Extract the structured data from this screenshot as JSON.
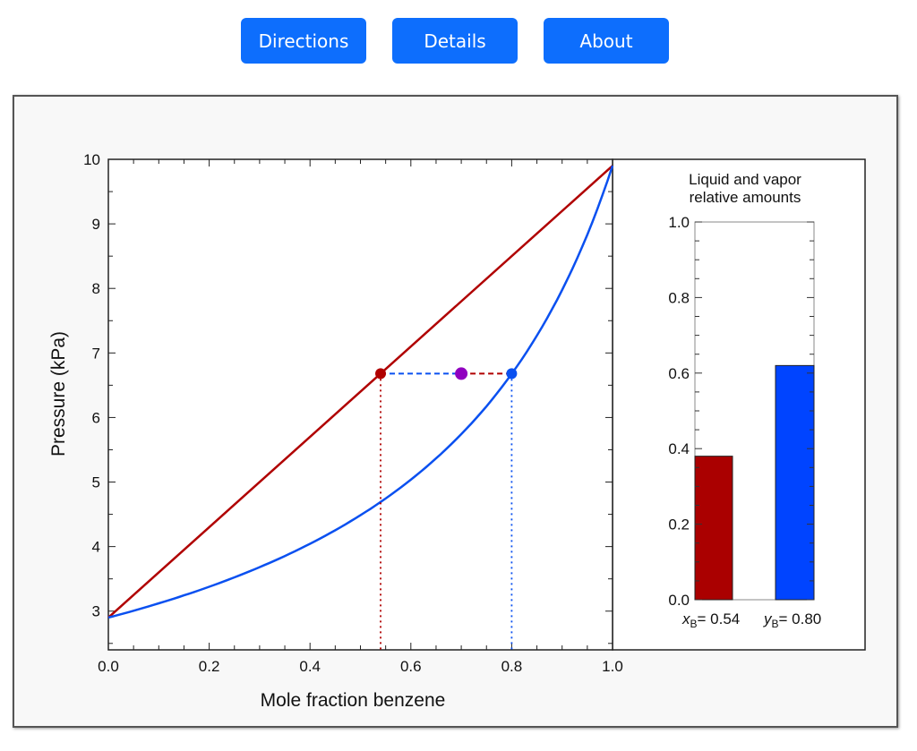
{
  "nav": {
    "directions": "Directions",
    "details": "Details",
    "about": "About"
  },
  "chart_data": [
    {
      "type": "line",
      "xlabel": "Mole fraction benzene",
      "ylabel": "Pressure (kPa)",
      "xlim": [
        0,
        1
      ],
      "ylim": [
        2.4,
        10
      ],
      "xticks": [
        "0.0",
        "0.2",
        "0.4",
        "0.6",
        "0.8",
        "1.0"
      ],
      "yticks": [
        "3",
        "4",
        "5",
        "6",
        "7",
        "8",
        "9",
        "10"
      ],
      "P_toluene": 2.9,
      "P_benzene": 9.9,
      "series": [
        {
          "name": "bubble line (liquid)",
          "color": "#b00000"
        },
        {
          "name": "dew curve (vapor)",
          "color": "#0a50f0"
        }
      ],
      "system_pressure": 6.68,
      "x_liquid": 0.54,
      "y_vapor": 0.8,
      "z_overall": 0.7,
      "colors": {
        "liquid": "#b00000",
        "vapor": "#0a50f0",
        "overall": "#9000c0"
      }
    },
    {
      "type": "bar",
      "title_line1": "Liquid and vapor",
      "title_line2": "relative amounts",
      "ylim": [
        0,
        1
      ],
      "yticks": [
        "0.0",
        "0.2",
        "0.4",
        "0.6",
        "0.8",
        "1.0"
      ],
      "categories": [
        "xB",
        "yB"
      ],
      "values": [
        0.38,
        0.62
      ],
      "labels": {
        "x_var": "x",
        "y_var": "y",
        "sub": "B",
        "x_val": "= 0.54",
        "y_val": "= 0.80"
      },
      "colors": [
        "#aa0000",
        "#0044ff"
      ]
    }
  ]
}
